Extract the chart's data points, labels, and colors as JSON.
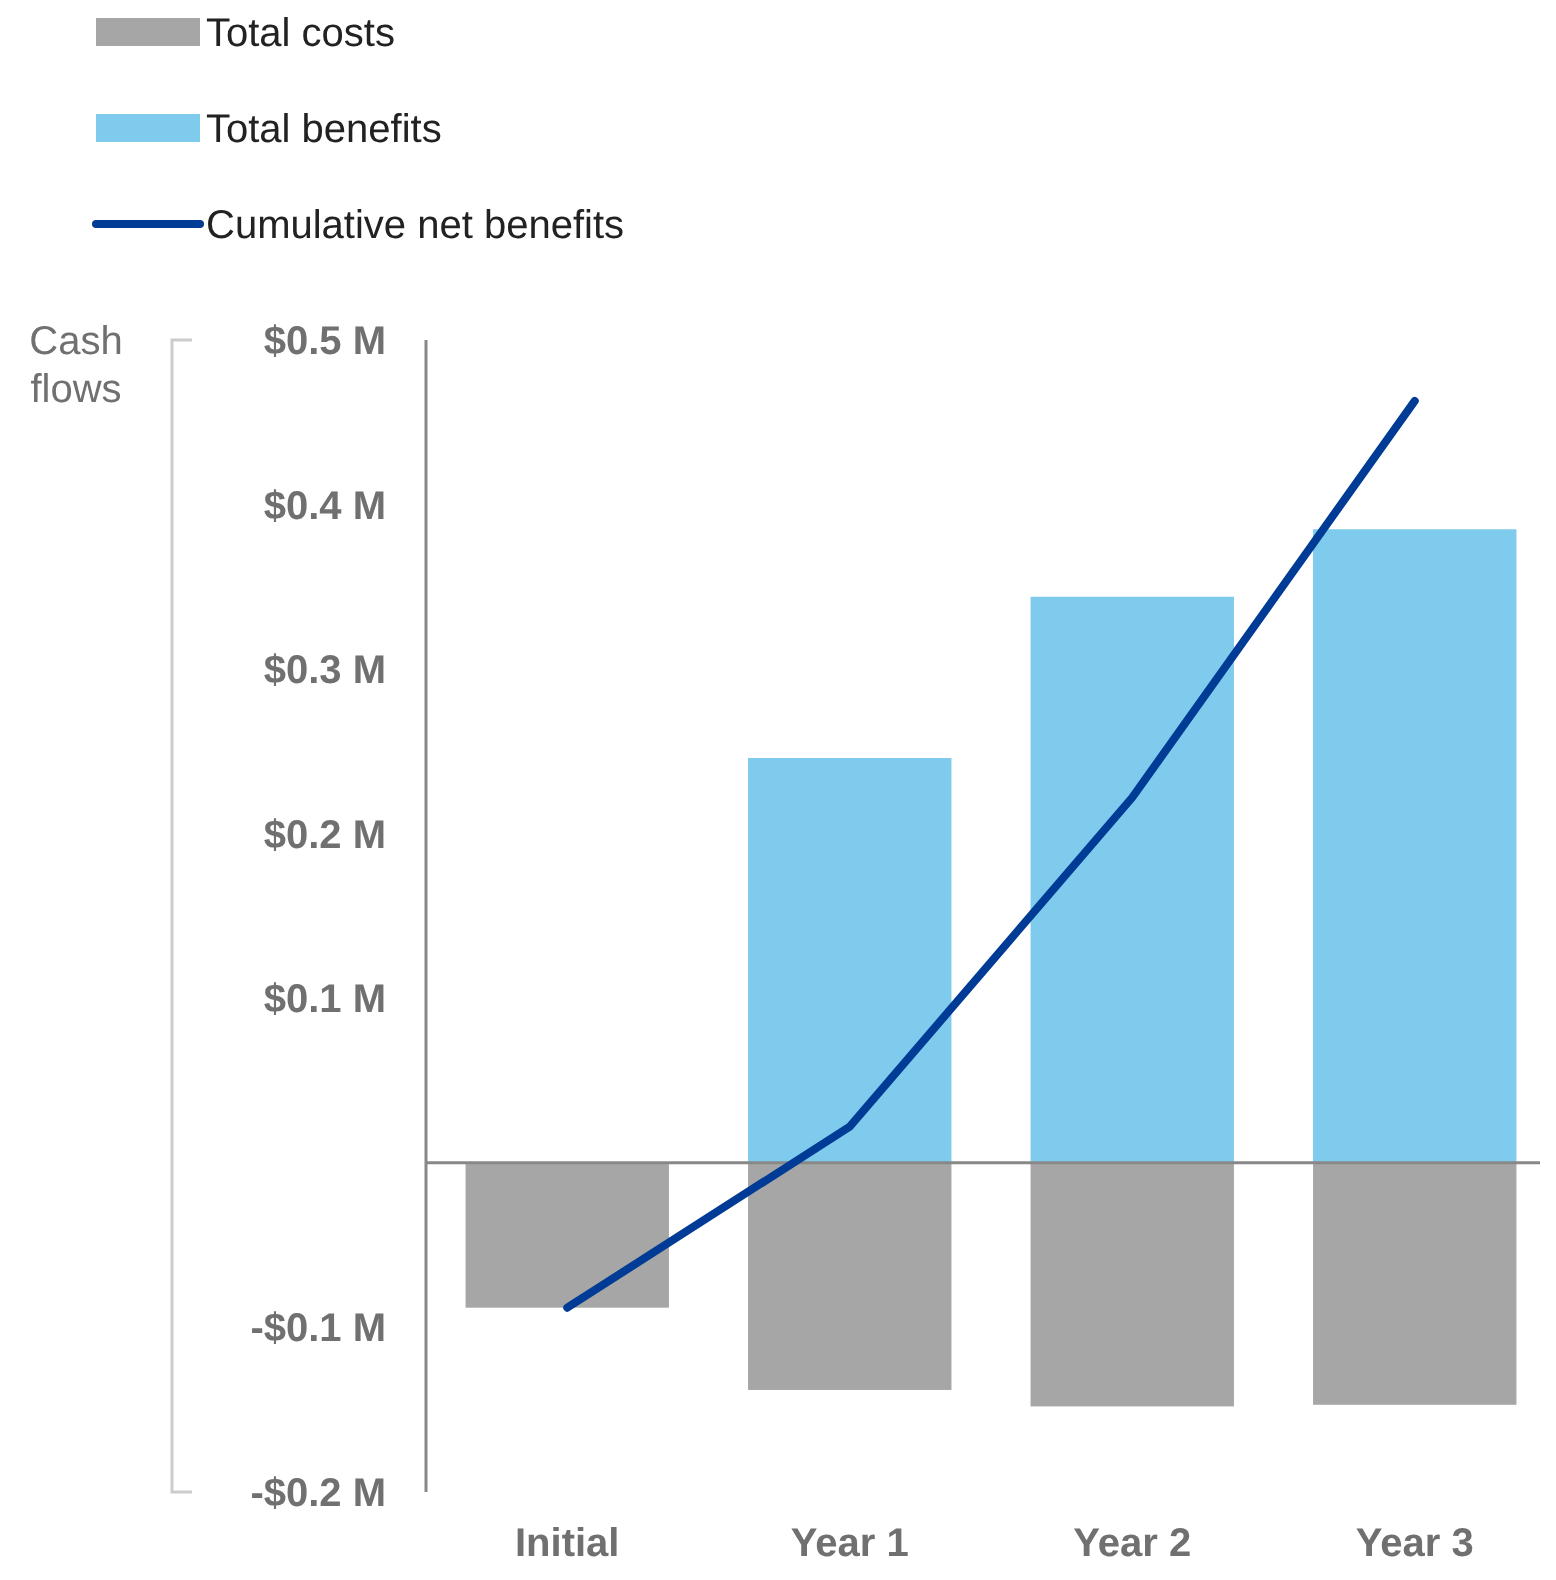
{
  "chart_data": {
    "type": "bar",
    "stacked": true,
    "categories": [
      "Initial",
      "Year 1",
      "Year 2",
      "Year 3"
    ],
    "ylabel": "Cash flows",
    "series": [
      {
        "name": "Total costs",
        "color": "#a6a6a6",
        "values": [
          -0.088,
          -0.138,
          -0.148,
          -0.147
        ]
      },
      {
        "name": "Total benefits",
        "color": "#7ecbed",
        "values": [
          0,
          0.246,
          0.344,
          0.385
        ]
      },
      {
        "name": "Cumulative net benefits",
        "type": "line",
        "color": "#003b96",
        "values": [
          -0.088,
          0.022,
          0.222,
          0.463
        ]
      }
    ],
    "ylim": [
      -0.2,
      0.5
    ],
    "yticks": [
      {
        "value": -0.2,
        "label": "-$0.2 M"
      },
      {
        "value": -0.1,
        "label": "-$0.1 M"
      },
      {
        "value": 0.1,
        "label": "$0.1 M"
      },
      {
        "value": 0.2,
        "label": "$0.2 M"
      },
      {
        "value": 0.3,
        "label": "$0.3 M"
      },
      {
        "value": 0.4,
        "label": "$0.4 M"
      },
      {
        "value": 0.5,
        "label": "$0.5 M"
      }
    ],
    "legend": "top left",
    "marker": "none",
    "line_style": "solid"
  }
}
